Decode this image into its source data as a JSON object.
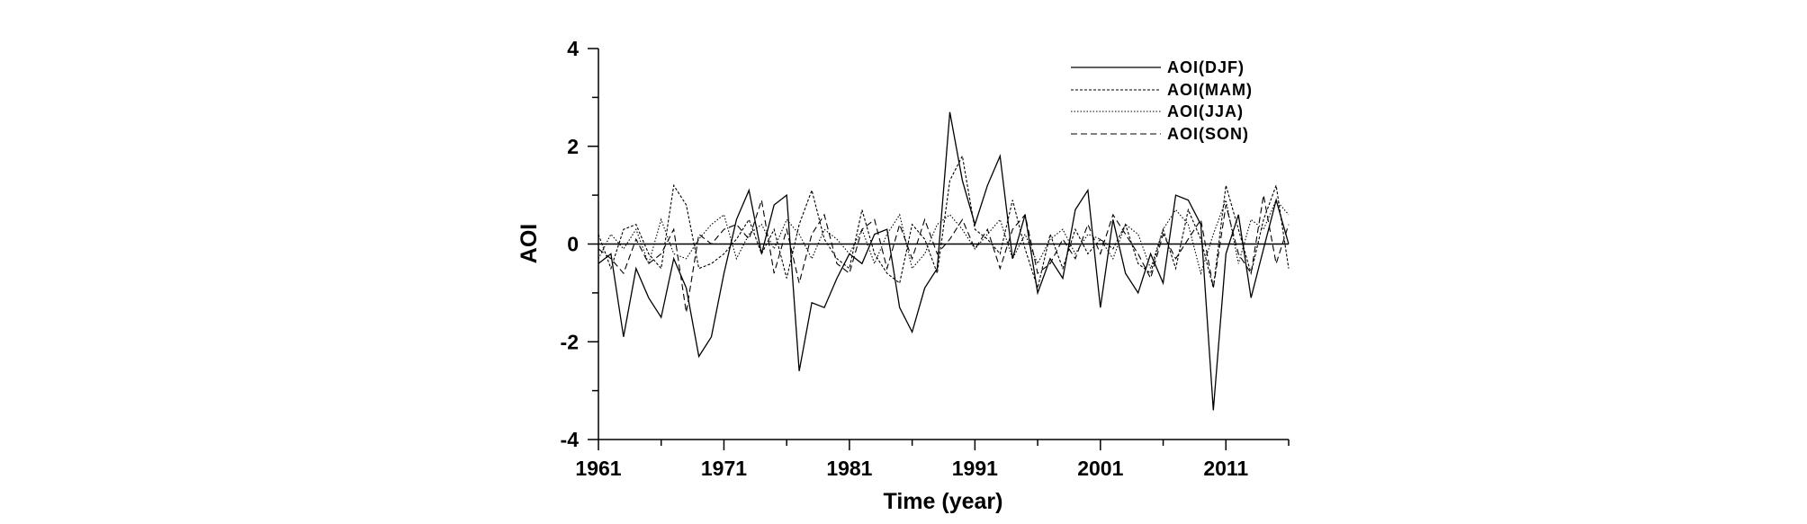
{
  "chart_data": {
    "type": "line",
    "title": "",
    "xlabel": "Time (year)",
    "ylabel": "AOI",
    "xlim": [
      1961,
      2016
    ],
    "ylim": [
      -4,
      4
    ],
    "x_ticks": [
      1961,
      1971,
      1981,
      1991,
      2001,
      2011
    ],
    "y_ticks": [
      -4,
      -2,
      0,
      2,
      4
    ],
    "zero_line": true,
    "grid": false,
    "legend_position": "top-right",
    "series": [
      {
        "name": "AOI(DJF)",
        "style": "solid",
        "color": "#000000",
        "x": [
          1961,
          1962,
          1963,
          1964,
          1965,
          1966,
          1967,
          1968,
          1969,
          1970,
          1971,
          1972,
          1973,
          1974,
          1975,
          1976,
          1977,
          1978,
          1979,
          1980,
          1981,
          1982,
          1983,
          1984,
          1985,
          1986,
          1987,
          1988,
          1989,
          1990,
          1991,
          1992,
          1993,
          1994,
          1995,
          1996,
          1997,
          1998,
          1999,
          2000,
          2001,
          2002,
          2003,
          2004,
          2005,
          2006,
          2007,
          2008,
          2009,
          2010,
          2011,
          2012,
          2013,
          2014,
          2015,
          2016
        ],
        "values": [
          -0.4,
          -0.2,
          -1.9,
          -0.5,
          -1.1,
          -1.5,
          -0.3,
          -0.9,
          -2.3,
          -1.9,
          -0.6,
          0.5,
          1.1,
          -0.2,
          0.8,
          1.0,
          -2.6,
          -1.2,
          -1.3,
          -0.7,
          -0.2,
          -0.4,
          0.2,
          0.3,
          -1.3,
          -1.8,
          -0.9,
          -0.5,
          2.7,
          1.3,
          0.4,
          1.2,
          1.8,
          -0.3,
          0.6,
          -1.0,
          -0.3,
          -0.7,
          0.7,
          1.1,
          -1.3,
          0.5,
          -0.6,
          -1.0,
          -0.2,
          -0.8,
          1.0,
          0.9,
          0.4,
          -3.4,
          -0.2,
          0.6,
          -1.1,
          -0.1,
          0.9,
          0.0
        ]
      },
      {
        "name": "AOI(MAM)",
        "style": "dashed-fine",
        "color": "#000000",
        "x": [
          1961,
          1962,
          1963,
          1964,
          1965,
          1966,
          1967,
          1968,
          1969,
          1970,
          1971,
          1972,
          1973,
          1974,
          1975,
          1976,
          1977,
          1978,
          1979,
          1980,
          1981,
          1982,
          1983,
          1984,
          1985,
          1986,
          1987,
          1988,
          1989,
          1990,
          1991,
          1992,
          1993,
          1994,
          1995,
          1996,
          1997,
          1998,
          1999,
          2000,
          2001,
          2002,
          2003,
          2004,
          2005,
          2006,
          2007,
          2008,
          2009,
          2010,
          2011,
          2012,
          2013,
          2014,
          2015,
          2016
        ],
        "values": [
          0.2,
          -0.5,
          0.3,
          0.4,
          -0.2,
          -0.5,
          1.2,
          0.8,
          -0.5,
          -0.4,
          -0.2,
          0.1,
          0.5,
          -0.2,
          0.3,
          -0.7,
          0.4,
          1.1,
          0.1,
          -0.3,
          -0.5,
          0.7,
          -0.2,
          -0.6,
          -0.8,
          0.4,
          0.1,
          -0.6,
          1.3,
          1.8,
          0.3,
          0.1,
          -0.2,
          0.9,
          -0.1,
          -0.9,
          0.2,
          -0.5,
          0.3,
          -0.2,
          0.1,
          -0.1,
          0.4,
          -0.4,
          -0.6,
          0.3,
          -0.5,
          0.7,
          0.1,
          -0.9,
          1.2,
          0.3,
          -0.6,
          0.5,
          1.2,
          -0.5
        ]
      },
      {
        "name": "AOI(JJA)",
        "style": "dotted",
        "color": "#000000",
        "x": [
          1961,
          1962,
          1963,
          1964,
          1965,
          1966,
          1967,
          1968,
          1969,
          1970,
          1971,
          1972,
          1973,
          1974,
          1975,
          1976,
          1977,
          1978,
          1979,
          1980,
          1981,
          1982,
          1983,
          1984,
          1985,
          1986,
          1987,
          1988,
          1989,
          1990,
          1991,
          1992,
          1993,
          1994,
          1995,
          1996,
          1997,
          1998,
          1999,
          2000,
          2001,
          2002,
          2003,
          2004,
          2005,
          2006,
          2007,
          2008,
          2009,
          2010,
          2011,
          2012,
          2013,
          2014,
          2015,
          2016
        ],
        "values": [
          -0.3,
          0.2,
          -0.1,
          0.3,
          -0.4,
          0.5,
          -0.2,
          -0.3,
          0.1,
          0.4,
          0.6,
          -0.3,
          0.2,
          0.4,
          -0.1,
          0.5,
          0.2,
          -0.3,
          0.3,
          0.1,
          -0.2,
          0.3,
          -0.4,
          0.2,
          0.6,
          -0.5,
          -0.2,
          0.4,
          0.6,
          0.3,
          -0.1,
          0.2,
          0.5,
          -0.3,
          0.2,
          -0.4,
          0.1,
          0.3,
          -0.2,
          0.2,
          0.1,
          -0.3,
          0.4,
          0.2,
          -0.5,
          0.3,
          0.7,
          0.4,
          -0.6,
          0.2,
          0.9,
          -0.4,
          0.5,
          0.3,
          0.9,
          0.6
        ]
      },
      {
        "name": "AOI(SON)",
        "style": "dashed",
        "color": "#000000",
        "x": [
          1961,
          1962,
          1963,
          1964,
          1965,
          1966,
          1967,
          1968,
          1969,
          1970,
          1971,
          1972,
          1973,
          1974,
          1975,
          1976,
          1977,
          1978,
          1979,
          1980,
          1981,
          1982,
          1983,
          1984,
          1985,
          1986,
          1987,
          1988,
          1989,
          1990,
          1991,
          1992,
          1993,
          1994,
          1995,
          1996,
          1997,
          1998,
          1999,
          2000,
          2001,
          2002,
          2003,
          2004,
          2005,
          2006,
          2007,
          2008,
          2009,
          2010,
          2011,
          2012,
          2013,
          2014,
          2015,
          2016
        ],
        "values": [
          -0.1,
          -0.3,
          -0.6,
          0.1,
          -0.4,
          -0.2,
          0.3,
          -1.4,
          0.2,
          0.0,
          0.3,
          0.4,
          0.1,
          0.9,
          -0.6,
          0.3,
          -0.8,
          0.2,
          0.6,
          -0.4,
          -0.6,
          0.3,
          0.5,
          -0.5,
          0.4,
          -0.3,
          0.5,
          -0.2,
          0.1,
          0.5,
          -0.1,
          0.3,
          -0.5,
          0.3,
          0.6,
          -0.6,
          -0.4,
          0.1,
          -0.3,
          0.4,
          -0.2,
          0.6,
          0.2,
          -0.2,
          -0.7,
          0.2,
          -0.3,
          0.1,
          0.5,
          -0.9,
          0.8,
          -0.2,
          -0.6,
          1.0,
          -0.4,
          0.4
        ]
      }
    ]
  }
}
